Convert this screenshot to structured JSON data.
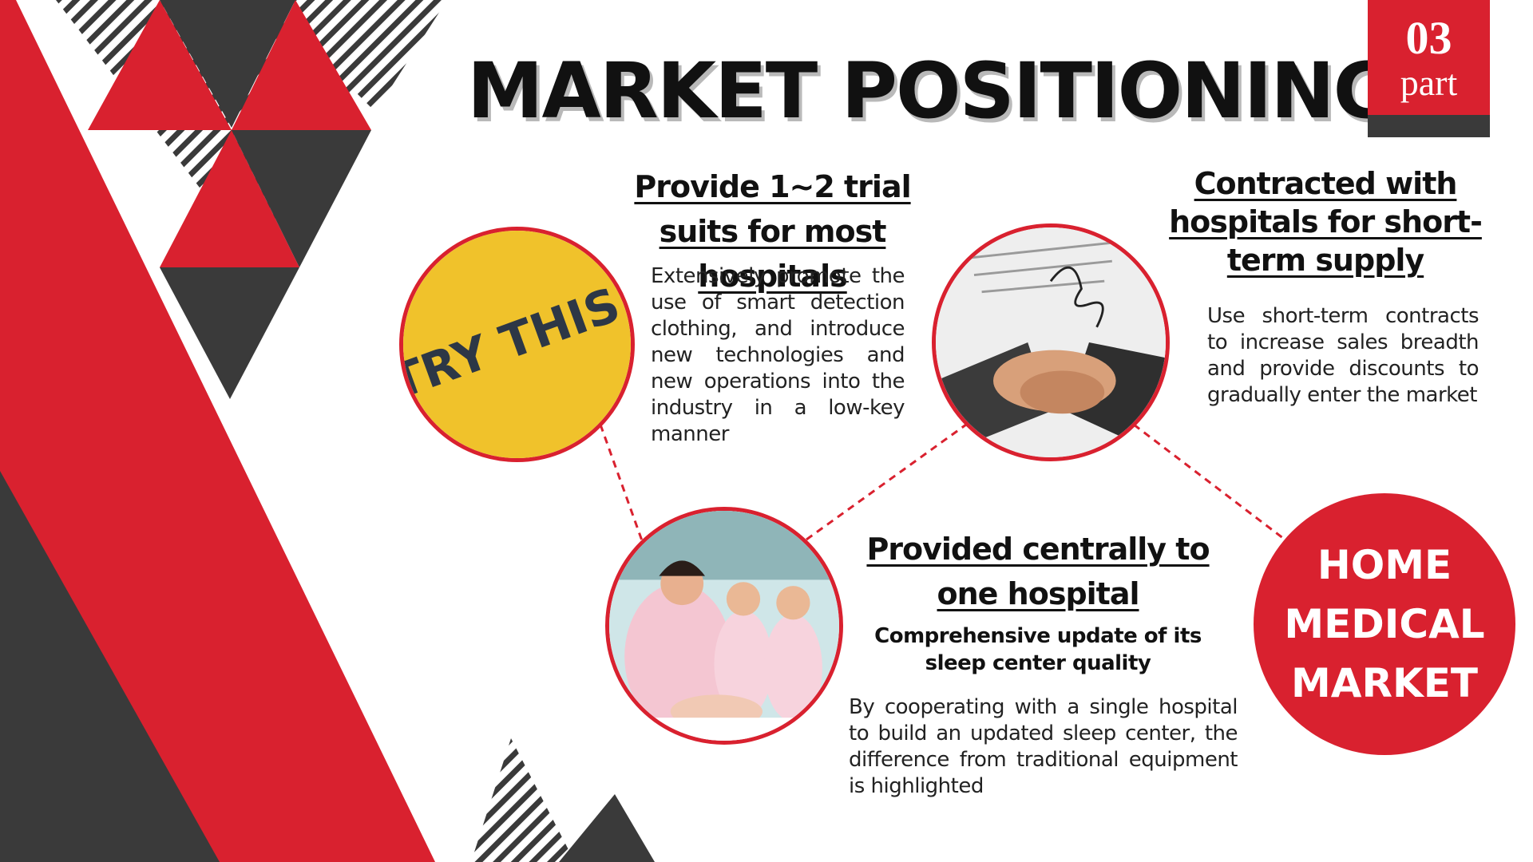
{
  "title": "MARKET POSITIONING",
  "part": {
    "number": "03",
    "word": "part"
  },
  "colors": {
    "accent": "#d9212f",
    "dark": "#3a3a3a",
    "yellow": "#f0c22b"
  },
  "trial": {
    "heading": "Provide 1~2 trial suits for most hospitals",
    "body": "Extensively promote the use of smart detection clothing, and introduce new technologies and new operations into the industry in a low-key manner",
    "badge_text": "TRY THIS!"
  },
  "contract": {
    "heading": "Contracted with hospitals for short-term supply",
    "body": "Use short-term contracts to increase sales breadth and provide discounts to gradually enter the market"
  },
  "central": {
    "heading": "Provided centrally to one hospital",
    "subheading": "Comprehensive update of its sleep center quality",
    "body": "By cooperating with a single hospital to build an updated sleep center, the difference from traditional equipment is highlighted"
  },
  "home": {
    "label": "HOME MEDICAL MARKET"
  },
  "images": {
    "trial": "try-this-sticker",
    "contract": "handshake-photo",
    "central": "nurses-with-newborn-photo"
  }
}
